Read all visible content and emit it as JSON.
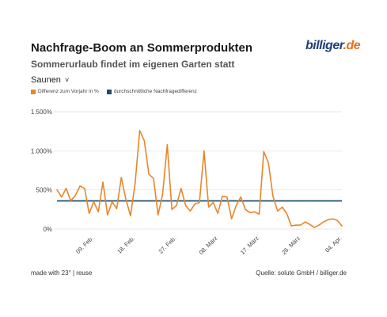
{
  "header": {
    "title": "Nachfrage-Boom an Sommerprodukten",
    "subtitle": "Sommerurlaub findet im eigenen Garten statt",
    "logo_name": "billiger",
    "logo_tld": ".de"
  },
  "dropdown": {
    "selected": "Saunen"
  },
  "footer": {
    "made_with": "made with 23° | reuse",
    "source": "Quelle: solute GmbH / billiger.de"
  },
  "colors": {
    "series": "#e8862a",
    "average": "#1e4f6e",
    "grid": "#dddddd"
  },
  "chart_data": {
    "type": "line",
    "title": "Nachfrage-Boom an Sommerprodukten",
    "subtitle": "Sommerurlaub findet im eigenen Garten statt",
    "ylim": [
      0,
      1500
    ],
    "y_ticks": [
      0,
      500,
      1000,
      1500
    ],
    "y_tick_labels": [
      "0%",
      "500%",
      "1.000%",
      "1.500%"
    ],
    "x_tick_labels": [
      "09. Feb.",
      "18. Feb.",
      "27. Feb.",
      "08. März",
      "17. März",
      "26. März",
      "04. Apr."
    ],
    "x_tick_day_index": [
      8,
      17,
      26,
      35,
      44,
      53,
      62
    ],
    "legend": [
      "Differenz zum Vorjahr in %",
      "durchschnittliche Nachfragedifferenz"
    ],
    "legend_placement": "top-left",
    "grid": true,
    "series": [
      {
        "name": "Differenz zum Vorjahr in %",
        "values": [
          500,
          410,
          520,
          360,
          430,
          550,
          520,
          200,
          350,
          220,
          600,
          180,
          350,
          260,
          660,
          380,
          170,
          580,
          1260,
          1130,
          700,
          650,
          180,
          450,
          1080,
          250,
          300,
          520,
          300,
          230,
          320,
          340,
          1000,
          280,
          340,
          200,
          420,
          410,
          130,
          300,
          410,
          250,
          210,
          220,
          190,
          990,
          850,
          420,
          230,
          280,
          200,
          40,
          50,
          50,
          90,
          60,
          20,
          50,
          90,
          120,
          130,
          110,
          40
        ]
      },
      {
        "name": "durchschnittliche Nachfragedifferenz",
        "values": [
          360
        ]
      }
    ]
  }
}
